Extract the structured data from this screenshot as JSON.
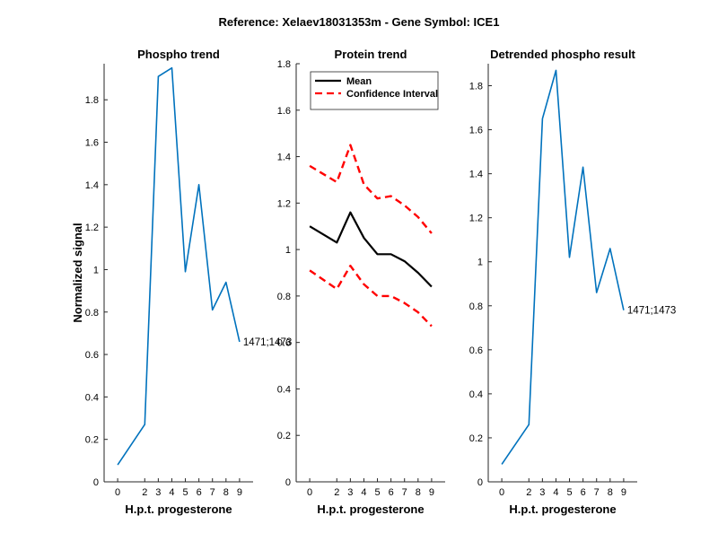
{
  "figure": {
    "suptitle": "Reference:  Xelaev18031353m - Gene Symbol:  ICE1"
  },
  "chart_data": [
    {
      "type": "line",
      "title": "Phospho trend",
      "xlabel": "H.p.t. progesterone",
      "ylabel": "Normalized signal",
      "x": [
        0,
        2,
        3,
        4,
        5,
        6,
        7,
        8,
        9
      ],
      "x_ticks": [
        "0",
        "2",
        "3",
        "4",
        "5",
        "6",
        "7",
        "8",
        "9"
      ],
      "y_ticks": [
        "0",
        "0.2",
        "0.4",
        "0.6",
        "0.8",
        "1",
        "1.2",
        "1.4",
        "1.6",
        "1.8"
      ],
      "ylim": [
        0,
        1.97
      ],
      "grid": false,
      "series": [
        {
          "values": [
            0.08,
            0.27,
            1.91,
            1.95,
            0.99,
            1.4,
            0.81,
            0.94,
            0.66
          ],
          "color": "#0072BD",
          "dash": "solid"
        }
      ],
      "annotation": "1471;1473"
    },
    {
      "type": "line",
      "title": "Protein trend",
      "xlabel": "H.p.t. progesterone",
      "ylabel": "",
      "x": [
        0,
        2,
        3,
        4,
        5,
        6,
        7,
        8,
        9
      ],
      "x_ticks": [
        "0",
        "2",
        "3",
        "4",
        "5",
        "6",
        "7",
        "8",
        "9"
      ],
      "y_ticks": [
        "0",
        "0.2",
        "0.4",
        "0.6",
        "0.8",
        "1",
        "1.2",
        "1.4",
        "1.6",
        "1.8"
      ],
      "ylim": [
        0,
        1.8
      ],
      "grid": false,
      "legend_position": "top-left",
      "series": [
        {
          "name": "Mean",
          "values": [
            1.1,
            1.03,
            1.16,
            1.05,
            0.98,
            0.98,
            0.95,
            0.9,
            0.84
          ],
          "color": "#000000",
          "dash": "solid"
        },
        {
          "name": "Confidence Interval",
          "values": [
            1.36,
            1.29,
            1.45,
            1.28,
            1.22,
            1.23,
            1.19,
            1.14,
            1.07
          ],
          "color": "#FF0000",
          "dash": "dashed"
        },
        {
          "values": [
            0.91,
            0.83,
            0.93,
            0.85,
            0.8,
            0.8,
            0.77,
            0.73,
            0.67
          ],
          "color": "#FF0000",
          "dash": "dashed"
        }
      ]
    },
    {
      "type": "line",
      "title": "Detrended phospho result",
      "xlabel": "H.p.t. progesterone",
      "ylabel": "",
      "x": [
        0,
        2,
        3,
        4,
        5,
        6,
        7,
        8,
        9
      ],
      "x_ticks": [
        "0",
        "2",
        "3",
        "4",
        "5",
        "6",
        "7",
        "8",
        "9"
      ],
      "y_ticks": [
        "0",
        "0.2",
        "0.4",
        "0.6",
        "0.8",
        "1",
        "1.2",
        "1.4",
        "1.6",
        "1.8"
      ],
      "ylim": [
        0,
        1.9
      ],
      "grid": false,
      "series": [
        {
          "values": [
            0.08,
            0.26,
            1.65,
            1.87,
            1.02,
            1.43,
            0.86,
            1.06,
            0.78
          ],
          "color": "#0072BD",
          "dash": "solid"
        }
      ],
      "annotation": "1471;1473"
    }
  ]
}
